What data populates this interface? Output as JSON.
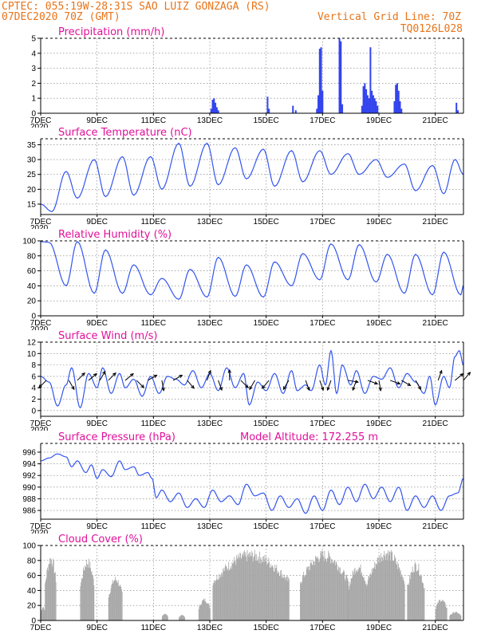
{
  "header": {
    "line1": "CPTEC:   055:19W-28:31S  SAO LUIZ GONZAGA (RS)",
    "line2_left": "07DEC2020 70Z (GMT)",
    "line2_right": "Vertical Grid Line: 70Z",
    "line3_right": "TQ0126L028"
  },
  "x_ticks": [
    "7DEC",
    "9DEC",
    "11DEC",
    "13DEC",
    "15DEC",
    "17DEC",
    "19DEC",
    "21DEC"
  ],
  "year_label": "2020",
  "colors": {
    "line": "#3355ee",
    "bar": "#3344ee",
    "cloud": "#a6a6a6",
    "title": "#e0109a",
    "header": "#e8741a"
  },
  "chart_data": [
    {
      "type": "bar",
      "title": "Precipitation (mm/h)",
      "ylim": [
        0,
        5
      ],
      "yticks": [
        "0",
        "1",
        "2",
        "3",
        "4",
        "5"
      ],
      "x_range_days": [
        0,
        15
      ],
      "bars": [
        [
          6.05,
          0.3
        ],
        [
          6.1,
          0.9
        ],
        [
          6.15,
          1.0
        ],
        [
          6.2,
          0.7
        ],
        [
          6.25,
          0.4
        ],
        [
          6.3,
          0.2
        ],
        [
          8.05,
          1.1
        ],
        [
          8.1,
          0.3
        ],
        [
          8.95,
          0.5
        ],
        [
          9.05,
          0.2
        ],
        [
          9.8,
          0.3
        ],
        [
          9.85,
          1.2
        ],
        [
          9.9,
          4.3
        ],
        [
          9.95,
          4.4
        ],
        [
          10.0,
          1.5
        ],
        [
          10.6,
          5.0
        ],
        [
          10.65,
          4.8
        ],
        [
          10.7,
          0.6
        ],
        [
          11.4,
          0.5
        ],
        [
          11.45,
          1.8
        ],
        [
          11.5,
          2.0
        ],
        [
          11.55,
          1.6
        ],
        [
          11.6,
          1.2
        ],
        [
          11.65,
          1.0
        ],
        [
          11.7,
          4.4
        ],
        [
          11.75,
          1.5
        ],
        [
          11.8,
          1.2
        ],
        [
          11.85,
          1.0
        ],
        [
          11.9,
          0.8
        ],
        [
          11.95,
          0.5
        ],
        [
          12.55,
          0.8
        ],
        [
          12.6,
          1.9
        ],
        [
          12.65,
          2.0
        ],
        [
          12.7,
          1.5
        ],
        [
          12.75,
          0.8
        ],
        [
          12.8,
          0.3
        ],
        [
          14.75,
          0.7
        ],
        [
          14.8,
          0.2
        ]
      ]
    },
    {
      "type": "line",
      "title": "Surface Temperature (nC)",
      "ylim": [
        11.5,
        37
      ],
      "yticks": [
        "15",
        "20",
        "25",
        "30",
        "35"
      ],
      "minima": [
        [
          0.0,
          15.0
        ],
        [
          0.4,
          12.5
        ],
        [
          1.3,
          17.0
        ],
        [
          2.3,
          17.5
        ],
        [
          3.3,
          18.0
        ],
        [
          4.3,
          20.0
        ],
        [
          5.3,
          21.0
        ],
        [
          6.3,
          21.5
        ],
        [
          7.3,
          23.5
        ],
        [
          8.3,
          21.0
        ],
        [
          9.3,
          22.5
        ],
        [
          10.3,
          25.0
        ],
        [
          11.3,
          25.0
        ],
        [
          12.3,
          24.0
        ],
        [
          13.3,
          19.5
        ],
        [
          14.3,
          18.5
        ],
        [
          15.0,
          25.0
        ]
      ],
      "maxima": [
        [
          0.9,
          26.0
        ],
        [
          1.9,
          30.0
        ],
        [
          2.9,
          31.0
        ],
        [
          3.9,
          31.0
        ],
        [
          4.9,
          35.5
        ],
        [
          5.9,
          35.5
        ],
        [
          6.9,
          34.0
        ],
        [
          7.9,
          33.5
        ],
        [
          8.9,
          33.0
        ],
        [
          9.9,
          33.0
        ],
        [
          10.9,
          32.0
        ],
        [
          11.9,
          30.0
        ],
        [
          12.9,
          28.5
        ],
        [
          13.9,
          28.0
        ],
        [
          14.7,
          30.0
        ]
      ]
    },
    {
      "type": "line",
      "title": "Relative Humidity (%)",
      "ylim": [
        0,
        100
      ],
      "yticks": [
        "0",
        "20",
        "40",
        "60",
        "80",
        "100"
      ],
      "maxima": [
        [
          0.0,
          99.0
        ],
        [
          0.3,
          98.0
        ],
        [
          1.3,
          99.0
        ],
        [
          2.3,
          88.0
        ],
        [
          3.3,
          68.0
        ],
        [
          4.3,
          50.0
        ],
        [
          5.3,
          62.0
        ],
        [
          6.3,
          78.0
        ],
        [
          7.3,
          68.0
        ],
        [
          8.3,
          72.0
        ],
        [
          9.3,
          83.0
        ],
        [
          10.3,
          96.0
        ],
        [
          11.3,
          95.0
        ],
        [
          12.3,
          82.0
        ],
        [
          13.3,
          82.0
        ],
        [
          14.3,
          85.0
        ]
      ],
      "minima": [
        [
          0.9,
          40.0
        ],
        [
          1.9,
          30.0
        ],
        [
          2.9,
          30.0
        ],
        [
          3.9,
          28.0
        ],
        [
          4.9,
          22.0
        ],
        [
          5.9,
          25.0
        ],
        [
          6.9,
          26.0
        ],
        [
          7.9,
          25.0
        ],
        [
          8.9,
          40.0
        ],
        [
          9.9,
          48.0
        ],
        [
          10.9,
          48.0
        ],
        [
          11.9,
          45.0
        ],
        [
          12.9,
          30.0
        ],
        [
          13.9,
          28.0
        ],
        [
          14.9,
          28.0
        ],
        [
          15.0,
          40.0
        ]
      ]
    },
    {
      "type": "line",
      "title": "Surface Wind (m/s)",
      "ylim": [
        -1,
        12
      ],
      "yticks": [
        "0",
        "2",
        "4",
        "6",
        "8",
        "10",
        "12"
      ],
      "speed": [
        [
          0.0,
          6.0
        ],
        [
          0.3,
          5.0
        ],
        [
          0.6,
          0.8
        ],
        [
          0.9,
          4.5
        ],
        [
          1.1,
          7.5
        ],
        [
          1.4,
          0.5
        ],
        [
          1.7,
          6.5
        ],
        [
          2.0,
          4.0
        ],
        [
          2.2,
          7.5
        ],
        [
          2.5,
          3.0
        ],
        [
          2.8,
          6.5
        ],
        [
          3.0,
          4.0
        ],
        [
          3.3,
          5.5
        ],
        [
          3.6,
          2.5
        ],
        [
          3.9,
          6.0
        ],
        [
          4.2,
          3.0
        ],
        [
          4.5,
          6.0
        ],
        [
          4.8,
          5.5
        ],
        [
          5.1,
          4.5
        ],
        [
          5.4,
          7.0
        ],
        [
          5.7,
          4.0
        ],
        [
          6.0,
          6.5
        ],
        [
          6.3,
          3.5
        ],
        [
          6.6,
          7.5
        ],
        [
          6.9,
          4.0
        ],
        [
          7.2,
          6.5
        ],
        [
          7.4,
          1.0
        ],
        [
          7.7,
          5.0
        ],
        [
          8.0,
          3.5
        ],
        [
          8.3,
          6.5
        ],
        [
          8.6,
          3.0
        ],
        [
          8.9,
          7.0
        ],
        [
          9.1,
          3.5
        ],
        [
          9.4,
          4.5
        ],
        [
          9.6,
          3.5
        ],
        [
          9.9,
          8.0
        ],
        [
          10.1,
          4.5
        ],
        [
          10.3,
          10.5
        ],
        [
          10.5,
          3.0
        ],
        [
          10.7,
          8.0
        ],
        [
          11.0,
          4.5
        ],
        [
          11.2,
          7.0
        ],
        [
          11.5,
          3.0
        ],
        [
          11.8,
          6.0
        ],
        [
          12.1,
          5.5
        ],
        [
          12.4,
          7.5
        ],
        [
          12.7,
          4.0
        ],
        [
          13.0,
          6.5
        ],
        [
          13.3,
          5.0
        ],
        [
          13.6,
          3.0
        ],
        [
          13.8,
          6.0
        ],
        [
          14.0,
          1.0
        ],
        [
          14.3,
          6.0
        ],
        [
          14.5,
          4.0
        ],
        [
          14.7,
          9.5
        ],
        [
          14.85,
          10.5
        ],
        [
          15.0,
          8.0
        ]
      ],
      "arrows": [
        [
          0.2,
          225
        ],
        [
          1.0,
          150
        ],
        [
          1.3,
          45
        ],
        [
          1.7,
          50
        ],
        [
          2.1,
          30
        ],
        [
          2.4,
          45
        ],
        [
          3.0,
          50
        ],
        [
          3.4,
          135
        ],
        [
          3.8,
          60
        ],
        [
          4.3,
          170
        ],
        [
          4.7,
          60
        ],
        [
          5.2,
          140
        ],
        [
          5.9,
          20
        ],
        [
          6.3,
          160
        ],
        [
          6.7,
          0
        ],
        [
          7.1,
          135
        ],
        [
          7.6,
          210
        ],
        [
          8.1,
          220
        ],
        [
          8.8,
          210
        ],
        [
          9.4,
          160
        ],
        [
          9.9,
          160
        ],
        [
          10.3,
          200
        ],
        [
          10.9,
          100
        ],
        [
          11.2,
          200
        ],
        [
          11.6,
          110
        ],
        [
          12.0,
          170
        ],
        [
          12.4,
          110
        ],
        [
          12.8,
          120
        ],
        [
          13.3,
          150
        ],
        [
          14.1,
          20
        ],
        [
          14.7,
          50
        ],
        [
          15.0,
          40
        ]
      ]
    },
    {
      "type": "line",
      "title": "Surface Pressure (hPa)",
      "annotation": "Model Altitude: 172.255  m",
      "ylim": [
        984.5,
        997.5
      ],
      "yticks": [
        "986",
        "988",
        "990",
        "992",
        "994",
        "996"
      ],
      "pressure": [
        [
          0.0,
          994.5
        ],
        [
          0.3,
          995.0
        ],
        [
          0.6,
          995.7
        ],
        [
          0.9,
          995.2
        ],
        [
          1.1,
          993.5
        ],
        [
          1.3,
          994.5
        ],
        [
          1.6,
          992.5
        ],
        [
          1.8,
          993.8
        ],
        [
          2.0,
          991.5
        ],
        [
          2.2,
          993.0
        ],
        [
          2.5,
          991.8
        ],
        [
          2.8,
          994.5
        ],
        [
          3.0,
          993.0
        ],
        [
          3.3,
          993.5
        ],
        [
          3.5,
          992.0
        ],
        [
          3.8,
          992.5
        ],
        [
          3.95,
          991.5
        ],
        [
          4.1,
          988.2
        ],
        [
          4.3,
          989.5
        ],
        [
          4.6,
          987.5
        ],
        [
          4.9,
          989.0
        ],
        [
          5.2,
          986.5
        ],
        [
          5.5,
          988.0
        ],
        [
          5.8,
          986.5
        ],
        [
          6.1,
          989.5
        ],
        [
          6.4,
          987.5
        ],
        [
          6.7,
          988.5
        ],
        [
          7.0,
          987.0
        ],
        [
          7.3,
          990.5
        ],
        [
          7.6,
          988.5
        ],
        [
          7.9,
          989.0
        ],
        [
          8.2,
          986.0
        ],
        [
          8.5,
          988.5
        ],
        [
          8.8,
          986.5
        ],
        [
          9.1,
          988.0
        ],
        [
          9.4,
          985.5
        ],
        [
          9.7,
          988.5
        ],
        [
          10.0,
          986.0
        ],
        [
          10.3,
          989.5
        ],
        [
          10.6,
          987.0
        ],
        [
          10.9,
          990.0
        ],
        [
          11.2,
          987.5
        ],
        [
          11.5,
          990.5
        ],
        [
          11.8,
          988.0
        ],
        [
          12.1,
          990.0
        ],
        [
          12.4,
          987.5
        ],
        [
          12.7,
          990.0
        ],
        [
          13.0,
          986.0
        ],
        [
          13.3,
          988.5
        ],
        [
          13.6,
          986.5
        ],
        [
          13.9,
          988.5
        ],
        [
          14.2,
          986.0
        ],
        [
          14.5,
          988.5
        ],
        [
          14.8,
          989.0
        ],
        [
          15.0,
          991.5
        ]
      ]
    },
    {
      "type": "bar",
      "title": "Cloud Cover (%)",
      "ylim": [
        0,
        100
      ],
      "yticks": [
        "0",
        "20",
        "40",
        "60",
        "80",
        "100"
      ],
      "blocks": [
        [
          0.0,
          0.15,
          20
        ],
        [
          0.15,
          0.55,
          90
        ],
        [
          1.4,
          1.9,
          85
        ],
        [
          2.4,
          2.9,
          60
        ],
        [
          4.3,
          4.5,
          10
        ],
        [
          4.9,
          5.1,
          8
        ],
        [
          5.6,
          6.0,
          30
        ],
        [
          6.1,
          8.8,
          95
        ],
        [
          9.2,
          10.9,
          95
        ],
        [
          10.9,
          11.6,
          78
        ],
        [
          11.6,
          12.9,
          98
        ],
        [
          13.0,
          13.6,
          80
        ],
        [
          14.0,
          14.4,
          30
        ],
        [
          14.5,
          14.9,
          12
        ]
      ]
    }
  ]
}
